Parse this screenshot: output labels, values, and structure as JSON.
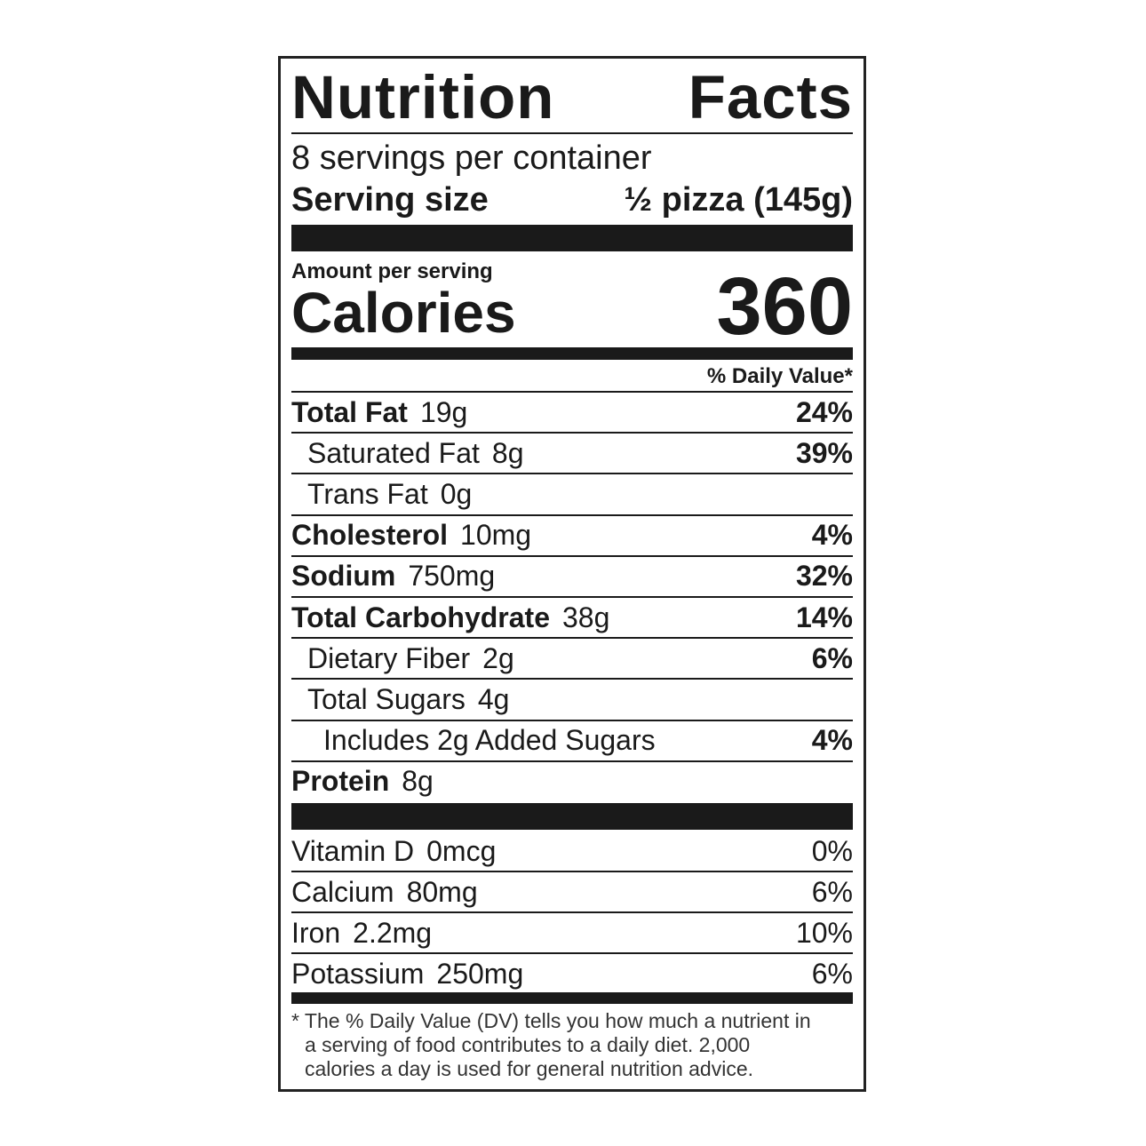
{
  "title_words": [
    "Nutrition",
    "Facts"
  ],
  "servings_per_container": "8 servings per container",
  "serving_size_label": "Serving size",
  "serving_size_value": "½ pizza (145g)",
  "amount_per_serving": "Amount per serving",
  "calories_label": "Calories",
  "calories_value": "360",
  "daily_value_header": "% Daily Value*",
  "nutrients": [
    {
      "name": "Total Fat",
      "amount": "19g",
      "dv": "24%",
      "bold": true,
      "indent": 0
    },
    {
      "name": "Saturated Fat",
      "amount": "8g",
      "dv": "39%",
      "bold": false,
      "indent": 1
    },
    {
      "name": "Trans Fat",
      "amount": "0g",
      "dv": "",
      "bold": false,
      "indent": 1
    },
    {
      "name": "Cholesterol",
      "amount": "10mg",
      "dv": "4%",
      "bold": true,
      "indent": 0
    },
    {
      "name": "Sodium",
      "amount": "750mg",
      "dv": "32%",
      "bold": true,
      "indent": 0
    },
    {
      "name": "Total Carbohydrate",
      "amount": "38g",
      "dv": "14%",
      "bold": true,
      "indent": 0
    },
    {
      "name": "Dietary Fiber",
      "amount": "2g",
      "dv": "6%",
      "bold": false,
      "indent": 1
    },
    {
      "name": "Total Sugars",
      "amount": "4g",
      "dv": "",
      "bold": false,
      "indent": 1
    },
    {
      "name": "Includes 2g Added Sugars",
      "amount": "",
      "dv": "4%",
      "bold": false,
      "indent": 2
    },
    {
      "name": "Protein",
      "amount": "8g",
      "dv": "",
      "bold": true,
      "indent": 0
    }
  ],
  "vitamins": [
    {
      "name": "Vitamin D",
      "amount": "0mcg",
      "dv": "0%"
    },
    {
      "name": "Calcium",
      "amount": "80mg",
      "dv": "6%"
    },
    {
      "name": "Iron",
      "amount": "2.2mg",
      "dv": "10%"
    },
    {
      "name": "Potassium",
      "amount": "250mg",
      "dv": "6%"
    }
  ],
  "footnote": [
    "* The % Daily Value (DV) tells you how much a nutrient in",
    "a serving of food contributes to a daily diet. 2,000",
    "calories a day is used for general nutrition advice."
  ]
}
